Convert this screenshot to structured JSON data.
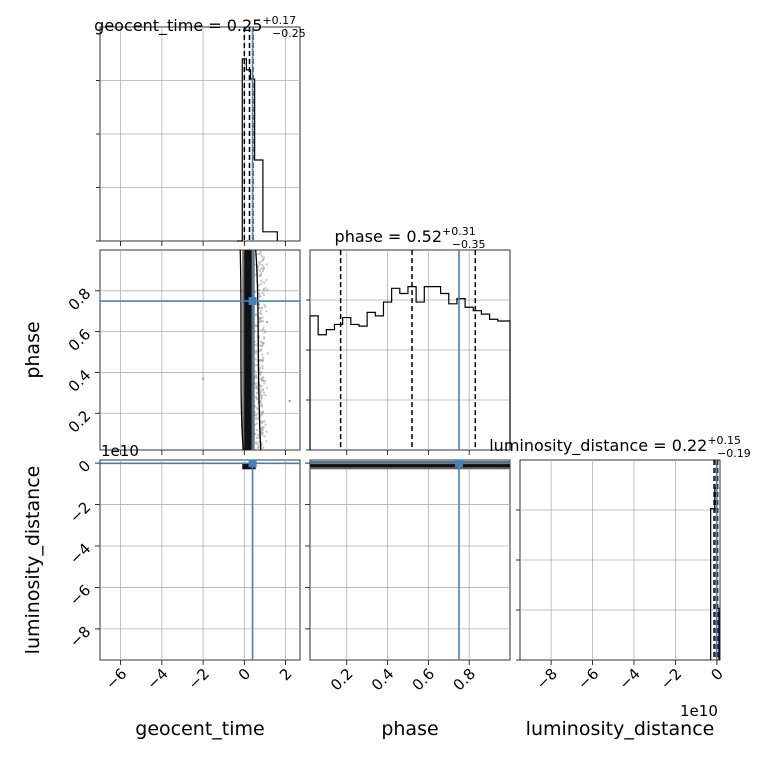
{
  "chart_data": {
    "type": "corner",
    "parameters": [
      "geocent_time",
      "phase",
      "luminosity_distance"
    ],
    "grid": true,
    "truth_color": "#4682b4",
    "titles": [
      {
        "name": "geocent_time",
        "median": "0.25",
        "plus": "+0.17",
        "minus": "−0.25"
      },
      {
        "name": "phase",
        "median": "0.52",
        "plus": "+0.31",
        "minus": "−0.35"
      },
      {
        "name": "luminosity_distance",
        "median": "0.22",
        "plus": "+0.15",
        "minus": "−0.19"
      }
    ],
    "axes": {
      "geocent_time": {
        "range": [
          -7,
          2.7
        ],
        "ticks": [
          -6,
          -4,
          -2,
          0,
          2
        ],
        "tick_labels": [
          "−6",
          "−4",
          "−2",
          "0",
          "2"
        ]
      },
      "phase": {
        "range": [
          0.02,
          1.0
        ],
        "ticks": [
          0.2,
          0.4,
          0.6,
          0.8
        ],
        "tick_labels": [
          "0.2",
          "0.4",
          "0.6",
          "0.8"
        ]
      },
      "luminosity_distance": {
        "range": [
          -9.5,
          0.15
        ],
        "ticks": [
          -8,
          -6,
          -4,
          -2,
          0
        ],
        "tick_labels": [
          "−8",
          "−6",
          "−4",
          "−2",
          "0"
        ],
        "offset_text": "1e10"
      }
    },
    "truths": {
      "geocent_time": 0.4,
      "phase": 0.75,
      "luminosity_distance": -0.01
    },
    "quantiles": {
      "geocent_time": [
        0.0,
        0.25,
        0.42
      ],
      "phase": [
        0.17,
        0.52,
        0.83
      ],
      "luminosity_distance": [
        0.03,
        0.22,
        0.37
      ]
    },
    "histograms": {
      "geocent_time": {
        "edges": [
          -0.35,
          -0.1,
          0.1,
          0.3,
          0.5,
          0.7,
          0.9,
          1.1,
          1.3,
          1.6
        ],
        "counts": [
          0,
          0.99,
          0.93,
          0.88,
          0.44,
          0.44,
          0.05,
          0.05,
          0.05
        ]
      },
      "phase": {
        "edges": [
          0.02,
          0.06,
          0.1,
          0.14,
          0.18,
          0.22,
          0.26,
          0.3,
          0.34,
          0.38,
          0.42,
          0.46,
          0.5,
          0.54,
          0.58,
          0.62,
          0.66,
          0.7,
          0.74,
          0.78,
          0.82,
          0.86,
          0.9,
          0.94,
          0.98,
          1.0
        ],
        "counts": [
          0.78,
          0.67,
          0.7,
          0.73,
          0.77,
          0.73,
          0.72,
          0.8,
          0.78,
          0.86,
          0.94,
          0.91,
          0.95,
          0.86,
          0.95,
          0.95,
          0.91,
          0.85,
          0.88,
          0.83,
          0.81,
          0.79,
          0.76,
          0.75,
          0.75
        ]
      },
      "luminosity_distance": {
        "edges": [
          -0.3,
          -0.1,
          0.0,
          0.1
        ],
        "counts": [
          0.88,
          1.0,
          0.3
        ]
      }
    }
  }
}
